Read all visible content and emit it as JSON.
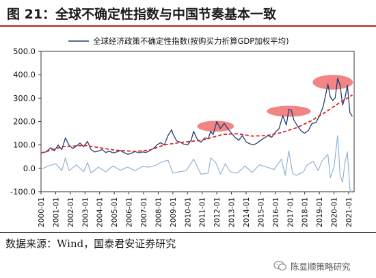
{
  "figure": {
    "title": "图 21：全球不确定性指数与中国节奏基本一致",
    "source": "数据来源：Wind，国泰君安证券研究",
    "watermark": "陈显顺策略研究",
    "watermark_icon": "wechat-icon"
  },
  "colors": {
    "header_rule": "#b32323",
    "main_series": "#1f3d73",
    "trend_series": "#e02020",
    "change_series": "#92b2d4",
    "highlight": "#ec5b5b"
  },
  "chart_data": {
    "type": "line",
    "title": "",
    "xlabel": "",
    "ylabel": "",
    "legend": {
      "entries": [
        "全球经济政策不确定性指数(按购买力折算GDP加权平均)"
      ],
      "placement": "top-center"
    },
    "x_range": [
      "2000-01",
      "2021-01"
    ],
    "ylim": [
      -100,
      500
    ],
    "yticks": [
      "500.0",
      "400.0",
      "300.0",
      "200.0",
      "100.0",
      "0.0",
      "-100.0"
    ],
    "xticks": [
      "2000-01",
      "2001-01",
      "2002-01",
      "2003-01",
      "2004-01",
      "2005-01",
      "2006-01",
      "2007-01",
      "2008-01",
      "2009-01",
      "2010-01",
      "2011-01",
      "2012-01",
      "2013-01",
      "2014-01",
      "2015-01",
      "2016-01",
      "2017-01",
      "2018-01",
      "2019-01",
      "2020-01",
      "2021-01"
    ],
    "grid": false,
    "series": [
      {
        "name": "全球经济政策不确定性指数(按购买力折算GDP加权平均)",
        "style": "solid",
        "points": [
          [
            "2000-01",
            65
          ],
          [
            "2000-05",
            70
          ],
          [
            "2000-09",
            88
          ],
          [
            "2000-12",
            75
          ],
          [
            "2001-03",
            100
          ],
          [
            "2001-06",
            80
          ],
          [
            "2001-09",
            130
          ],
          [
            "2001-12",
            98
          ],
          [
            "2002-03",
            85
          ],
          [
            "2002-06",
            95
          ],
          [
            "2002-09",
            108
          ],
          [
            "2002-12",
            92
          ],
          [
            "2003-03",
            115
          ],
          [
            "2003-06",
            80
          ],
          [
            "2003-09",
            70
          ],
          [
            "2003-12",
            74
          ],
          [
            "2004-03",
            80
          ],
          [
            "2004-06",
            68
          ],
          [
            "2004-09",
            73
          ],
          [
            "2004-12",
            66
          ],
          [
            "2005-03",
            70
          ],
          [
            "2005-06",
            76
          ],
          [
            "2005-09",
            67
          ],
          [
            "2005-12",
            60
          ],
          [
            "2006-03",
            64
          ],
          [
            "2006-06",
            72
          ],
          [
            "2006-09",
            66
          ],
          [
            "2006-12",
            70
          ],
          [
            "2007-03",
            68
          ],
          [
            "2007-06",
            75
          ],
          [
            "2007-09",
            85
          ],
          [
            "2007-12",
            100
          ],
          [
            "2008-03",
            110
          ],
          [
            "2008-06",
            100
          ],
          [
            "2008-09",
            140
          ],
          [
            "2008-12",
            165
          ],
          [
            "2009-01",
            148
          ],
          [
            "2009-04",
            118
          ],
          [
            "2009-07",
            112
          ],
          [
            "2009-10",
            103
          ],
          [
            "2010-01",
            100
          ],
          [
            "2010-04",
            120
          ],
          [
            "2010-06",
            158
          ],
          [
            "2010-09",
            124
          ],
          [
            "2010-12",
            112
          ],
          [
            "2011-03",
            130
          ],
          [
            "2011-06",
            127
          ],
          [
            "2011-08",
            158
          ],
          [
            "2011-10",
            145
          ],
          [
            "2011-12",
            182
          ],
          [
            "2012-01",
            200
          ],
          [
            "2012-04",
            170
          ],
          [
            "2012-07",
            192
          ],
          [
            "2012-10",
            170
          ],
          [
            "2013-01",
            150
          ],
          [
            "2013-04",
            132
          ],
          [
            "2013-07",
            120
          ],
          [
            "2013-10",
            140
          ],
          [
            "2014-01",
            113
          ],
          [
            "2014-04",
            105
          ],
          [
            "2014-07",
            100
          ],
          [
            "2014-10",
            108
          ],
          [
            "2015-01",
            120
          ],
          [
            "2015-04",
            130
          ],
          [
            "2015-07",
            140
          ],
          [
            "2015-10",
            133
          ],
          [
            "2016-01",
            155
          ],
          [
            "2016-04",
            170
          ],
          [
            "2016-07",
            225
          ],
          [
            "2016-10",
            185
          ],
          [
            "2016-12",
            252
          ],
          [
            "2017-02",
            248
          ],
          [
            "2017-04",
            208
          ],
          [
            "2017-07",
            182
          ],
          [
            "2017-10",
            160
          ],
          [
            "2018-01",
            150
          ],
          [
            "2018-04",
            162
          ],
          [
            "2018-07",
            192
          ],
          [
            "2018-10",
            195
          ],
          [
            "2019-01",
            222
          ],
          [
            "2019-04",
            262
          ],
          [
            "2019-06",
            310
          ],
          [
            "2019-08",
            360
          ],
          [
            "2019-10",
            305
          ],
          [
            "2019-12",
            290
          ],
          [
            "2020-02",
            302
          ],
          [
            "2020-04",
            385
          ],
          [
            "2020-06",
            355
          ],
          [
            "2020-08",
            270
          ],
          [
            "2020-10",
            300
          ],
          [
            "2020-12",
            355
          ],
          [
            "2021-02",
            238
          ],
          [
            "2021-04",
            222
          ]
        ]
      },
      {
        "name": "",
        "style": "dashed",
        "points": [
          [
            "2000-01",
            65
          ],
          [
            "2001-06",
            92
          ],
          [
            "2003-01",
            98
          ],
          [
            "2005-01",
            78
          ],
          [
            "2006-06",
            72
          ],
          [
            "2007-06",
            78
          ],
          [
            "2008-06",
            100
          ],
          [
            "2009-06",
            110
          ],
          [
            "2011-01",
            120
          ],
          [
            "2012-06",
            145
          ],
          [
            "2013-06",
            148
          ],
          [
            "2014-06",
            138
          ],
          [
            "2015-06",
            140
          ],
          [
            "2016-06",
            153
          ],
          [
            "2017-06",
            173
          ],
          [
            "2018-06",
            202
          ],
          [
            "2019-06",
            240
          ],
          [
            "2020-06",
            282
          ],
          [
            "2021-04",
            313
          ]
        ]
      },
      {
        "name": "",
        "style": "solid-light",
        "points": [
          [
            "2000-01",
            -5
          ],
          [
            "2000-06",
            8
          ],
          [
            "2001-01",
            20
          ],
          [
            "2001-06",
            -10
          ],
          [
            "2001-09",
            45
          ],
          [
            "2001-12",
            -10
          ],
          [
            "2002-06",
            15
          ],
          [
            "2002-12",
            -15
          ],
          [
            "2003-03",
            25
          ],
          [
            "2003-06",
            -20
          ],
          [
            "2003-12",
            5
          ],
          [
            "2004-06",
            -15
          ],
          [
            "2004-12",
            10
          ],
          [
            "2005-06",
            -8
          ],
          [
            "2005-12",
            5
          ],
          [
            "2006-06",
            -10
          ],
          [
            "2006-12",
            8
          ],
          [
            "2007-06",
            5
          ],
          [
            "2007-12",
            15
          ],
          [
            "2008-03",
            25
          ],
          [
            "2008-09",
            35
          ],
          [
            "2009-01",
            -20
          ],
          [
            "2009-06",
            -15
          ],
          [
            "2009-12",
            -10
          ],
          [
            "2010-06",
            40
          ],
          [
            "2010-12",
            -25
          ],
          [
            "2011-06",
            -20
          ],
          [
            "2011-08",
            45
          ],
          [
            "2011-12",
            25
          ],
          [
            "2012-04",
            -25
          ],
          [
            "2012-08",
            20
          ],
          [
            "2012-12",
            -15
          ],
          [
            "2013-06",
            -20
          ],
          [
            "2013-12",
            10
          ],
          [
            "2014-06",
            -18
          ],
          [
            "2014-12",
            15
          ],
          [
            "2015-06",
            5
          ],
          [
            "2015-12",
            -5
          ],
          [
            "2016-06",
            40
          ],
          [
            "2016-09",
            -30
          ],
          [
            "2016-12",
            75
          ],
          [
            "2017-03",
            -20
          ],
          [
            "2017-06",
            -30
          ],
          [
            "2017-12",
            -15
          ],
          [
            "2018-03",
            15
          ],
          [
            "2018-08",
            30
          ],
          [
            "2018-12",
            -10
          ],
          [
            "2019-03",
            30
          ],
          [
            "2019-08",
            60
          ],
          [
            "2019-10",
            -40
          ],
          [
            "2020-01",
            5
          ],
          [
            "2020-04",
            140
          ],
          [
            "2020-06",
            -30
          ],
          [
            "2020-08",
            -60
          ],
          [
            "2020-10",
            25
          ],
          [
            "2020-12",
            70
          ],
          [
            "2021-02",
            -90
          ],
          [
            "2021-04",
            -105
          ]
        ]
      }
    ],
    "highlights": [
      {
        "center": [
          "2011-12",
          180
        ],
        "radii": [
          10,
          36
        ]
      },
      {
        "center": [
          "2016-12",
          244
        ],
        "radii": [
          12,
          40
        ]
      },
      {
        "center": [
          "2019-12",
          368
        ],
        "radii": [
          11,
          70
        ]
      }
    ]
  }
}
